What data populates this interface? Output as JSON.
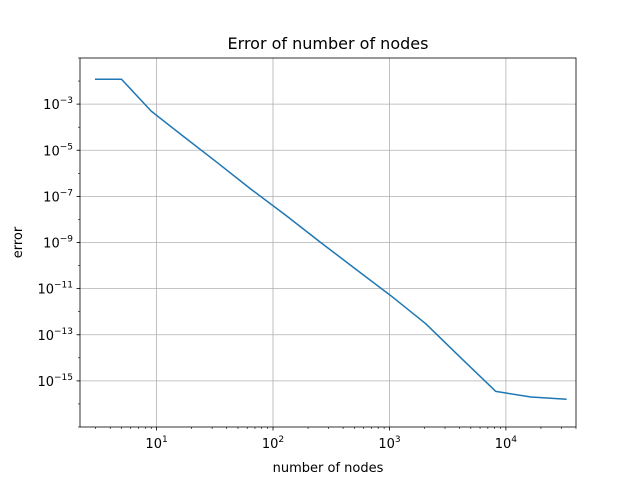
{
  "chart_data": {
    "type": "line",
    "title": "Error of number of nodes",
    "xlabel": "number of nodes",
    "ylabel": "error",
    "xscale": "log",
    "yscale": "log",
    "xlim": [
      2.2,
      40000
    ],
    "ylim": [
      1e-17,
      0.1
    ],
    "grid": true,
    "line_color": "#1f77b4",
    "x_major_ticks": [
      {
        "value": 10,
        "base": "10",
        "exp": "1"
      },
      {
        "value": 100,
        "base": "10",
        "exp": "2"
      },
      {
        "value": 1000,
        "base": "10",
        "exp": "3"
      },
      {
        "value": 10000,
        "base": "10",
        "exp": "4"
      }
    ],
    "y_major_ticks": [
      {
        "value": 0.001,
        "base": "10",
        "exp": "−3"
      },
      {
        "value": 1e-05,
        "base": "10",
        "exp": "−5"
      },
      {
        "value": 1e-07,
        "base": "10",
        "exp": "−7"
      },
      {
        "value": 1e-09,
        "base": "10",
        "exp": "−9"
      },
      {
        "value": 1e-11,
        "base": "10",
        "exp": "−11"
      },
      {
        "value": 1e-13,
        "base": "10",
        "exp": "−13"
      },
      {
        "value": 1e-15,
        "base": "10",
        "exp": "−15"
      }
    ],
    "series": [
      {
        "x": [
          3,
          5,
          9,
          17,
          33,
          65,
          129,
          257,
          513,
          1025,
          2049,
          4097,
          8193,
          16385,
          32769
        ],
        "y": [
          0.012,
          0.012,
          0.0005,
          4e-05,
          3e-06,
          2e-07,
          1.5e-08,
          1e-09,
          7e-11,
          5e-12,
          3e-13,
          1e-14,
          3.5e-16,
          2e-16,
          1.6e-16
        ]
      }
    ]
  }
}
